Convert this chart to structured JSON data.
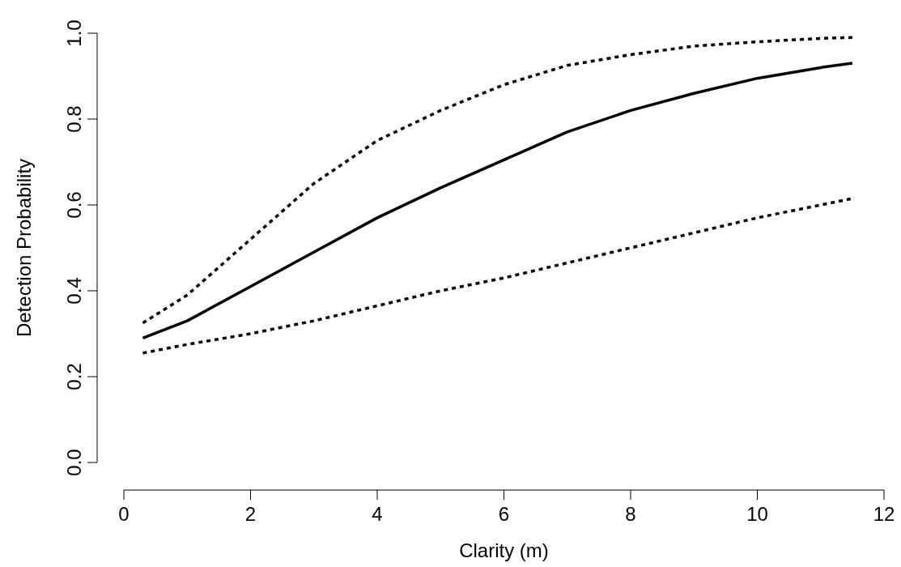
{
  "chart_data": {
    "type": "line",
    "xlabel": "Clarity (m)",
    "ylabel": "Detection Probability",
    "x": [
      0.3,
      1,
      2,
      3,
      4,
      5,
      6,
      7,
      8,
      9,
      10,
      11,
      11.5
    ],
    "series": [
      {
        "color": "#000000",
        "line_style": "solid",
        "values": [
          0.29,
          0.33,
          0.41,
          0.49,
          0.57,
          0.64,
          0.705,
          0.77,
          0.82,
          0.86,
          0.895,
          0.92,
          0.93
        ]
      },
      {
        "color": "#000000",
        "line_style": "dotted",
        "values": [
          0.325,
          0.39,
          0.52,
          0.65,
          0.75,
          0.82,
          0.88,
          0.925,
          0.95,
          0.97,
          0.98,
          0.988,
          0.99
        ]
      },
      {
        "color": "#000000",
        "line_style": "dotted",
        "values": [
          0.255,
          0.275,
          0.3,
          0.33,
          0.365,
          0.4,
          0.43,
          0.465,
          0.5,
          0.535,
          0.57,
          0.6,
          0.615
        ]
      }
    ],
    "xlim": [
      0,
      12
    ],
    "ylim": [
      0,
      1
    ],
    "xticks": [
      0,
      2,
      4,
      6,
      8,
      10,
      12
    ],
    "yticks": [
      {
        "value": 0,
        "label": "0.0"
      },
      {
        "value": 0.2,
        "label": "0.2"
      },
      {
        "value": 0.4,
        "label": "0.4"
      },
      {
        "value": 0.6,
        "label": "0.6"
      },
      {
        "value": 0.8,
        "label": "0.8"
      },
      {
        "value": 1,
        "label": "1.0"
      }
    ],
    "grid": false
  }
}
